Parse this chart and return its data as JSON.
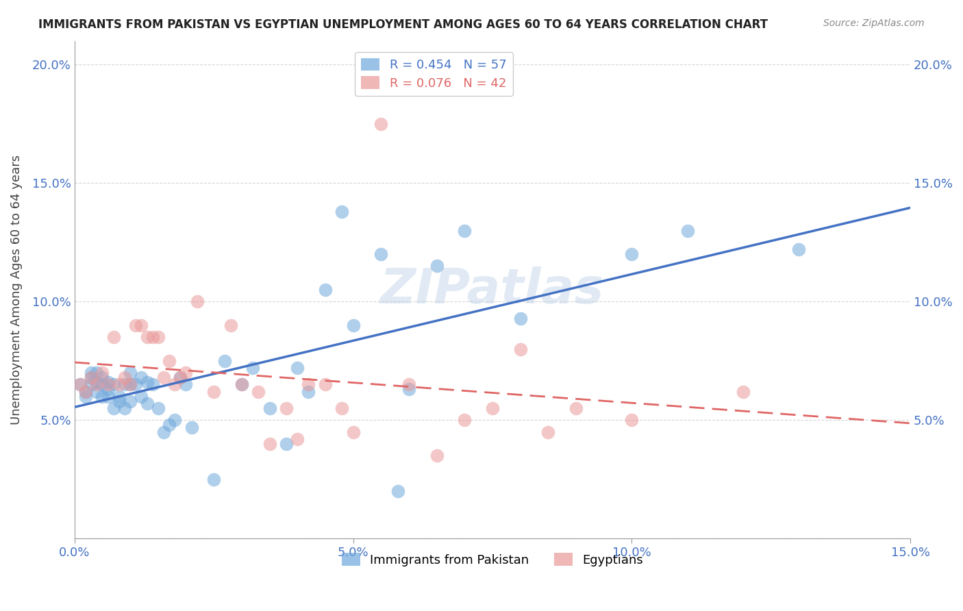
{
  "title": "IMMIGRANTS FROM PAKISTAN VS EGYPTIAN UNEMPLOYMENT AMONG AGES 60 TO 64 YEARS CORRELATION CHART",
  "source": "Source: ZipAtlas.com",
  "ylabel": "Unemployment Among Ages 60 to 64 years",
  "xmin": 0.0,
  "xmax": 0.15,
  "ymin": 0.0,
  "ymax": 0.21,
  "legend1_R": "0.454",
  "legend1_N": "57",
  "legend2_R": "0.076",
  "legend2_N": "42",
  "color_pakistan": "#6fa8dc",
  "color_egypt": "#ea9999",
  "color_line_pakistan": "#4472c4",
  "color_line_egypt": "#e06666",
  "color_tick_labels": "#4472c4",
  "watermark": "ZIPatlas",
  "pakistan_x": [
    0.001,
    0.002,
    0.002,
    0.003,
    0.003,
    0.003,
    0.004,
    0.004,
    0.004,
    0.005,
    0.005,
    0.005,
    0.006,
    0.006,
    0.006,
    0.007,
    0.007,
    0.008,
    0.008,
    0.009,
    0.009,
    0.01,
    0.01,
    0.01,
    0.011,
    0.012,
    0.012,
    0.013,
    0.013,
    0.014,
    0.015,
    0.016,
    0.017,
    0.018,
    0.019,
    0.02,
    0.021,
    0.025,
    0.027,
    0.03,
    0.032,
    0.035,
    0.038,
    0.04,
    0.042,
    0.045,
    0.048,
    0.05,
    0.055,
    0.058,
    0.06,
    0.065,
    0.07,
    0.08,
    0.1,
    0.11,
    0.13
  ],
  "pakistan_y": [
    0.065,
    0.062,
    0.06,
    0.065,
    0.068,
    0.07,
    0.062,
    0.066,
    0.07,
    0.06,
    0.065,
    0.068,
    0.06,
    0.063,
    0.066,
    0.055,
    0.065,
    0.058,
    0.06,
    0.055,
    0.065,
    0.058,
    0.065,
    0.07,
    0.065,
    0.068,
    0.06,
    0.066,
    0.057,
    0.065,
    0.055,
    0.045,
    0.048,
    0.05,
    0.068,
    0.065,
    0.047,
    0.025,
    0.075,
    0.065,
    0.072,
    0.055,
    0.04,
    0.072,
    0.062,
    0.105,
    0.138,
    0.09,
    0.12,
    0.02,
    0.063,
    0.115,
    0.13,
    0.093,
    0.12,
    0.13,
    0.122
  ],
  "egypt_x": [
    0.001,
    0.002,
    0.003,
    0.004,
    0.005,
    0.006,
    0.007,
    0.008,
    0.009,
    0.01,
    0.011,
    0.012,
    0.013,
    0.014,
    0.015,
    0.016,
    0.017,
    0.018,
    0.019,
    0.02,
    0.022,
    0.025,
    0.028,
    0.03,
    0.033,
    0.035,
    0.038,
    0.04,
    0.042,
    0.045,
    0.048,
    0.05,
    0.055,
    0.06,
    0.065,
    0.07,
    0.075,
    0.08,
    0.085,
    0.09,
    0.1,
    0.12
  ],
  "egypt_y": [
    0.065,
    0.062,
    0.068,
    0.065,
    0.07,
    0.065,
    0.085,
    0.065,
    0.068,
    0.065,
    0.09,
    0.09,
    0.085,
    0.085,
    0.085,
    0.068,
    0.075,
    0.065,
    0.068,
    0.07,
    0.1,
    0.062,
    0.09,
    0.065,
    0.062,
    0.04,
    0.055,
    0.042,
    0.065,
    0.065,
    0.055,
    0.045,
    0.175,
    0.065,
    0.035,
    0.05,
    0.055,
    0.08,
    0.045,
    0.055,
    0.05,
    0.062
  ]
}
